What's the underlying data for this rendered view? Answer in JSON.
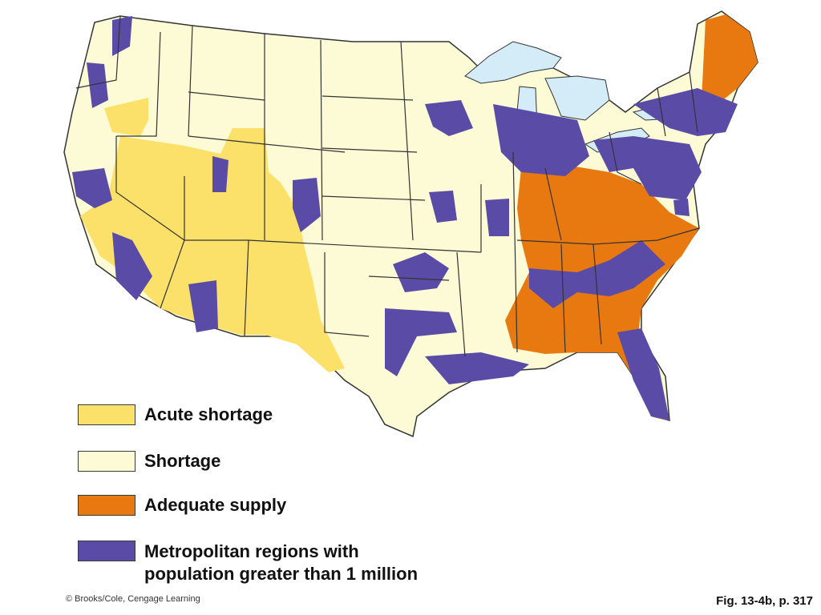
{
  "colors": {
    "acute_shortage": "#fbe06a",
    "shortage": "#fdfbd5",
    "adequate_supply": "#e87910",
    "metropolitan": "#5a4ca6",
    "water": "#d4ecf8",
    "border": "#333333"
  },
  "legend": {
    "items": [
      {
        "key": "acute_shortage",
        "label": "Acute shortage"
      },
      {
        "key": "shortage",
        "label": "Shortage"
      },
      {
        "key": "adequate_supply",
        "label": "Adequate supply"
      },
      {
        "key": "metropolitan",
        "label": "Metropolitan regions with\npopulation greater than 1 million"
      }
    ]
  },
  "copyright": "© Brooks/Cole, Cengage Learning",
  "figure_ref": "Fig. 13-4b, p. 317"
}
